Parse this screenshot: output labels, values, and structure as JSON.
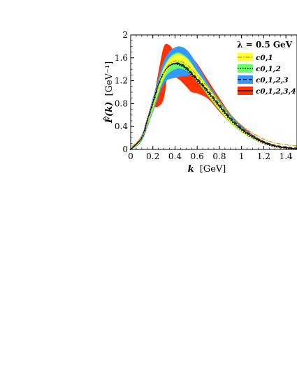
{
  "chart_data": {
    "type": "area",
    "xlabel_var": "k",
    "xlabel_unit": "[GeV]",
    "ylabel_var": "F̂(k)",
    "ylabel_unit": "[GeV⁻¹]",
    "xlim": [
      0,
      1.5
    ],
    "ylim": [
      0,
      2
    ],
    "x_ticks": [
      "0",
      "0.2",
      "0.4",
      "0.6",
      "0.8",
      "1",
      "1.2",
      "1.4"
    ],
    "y_ticks": [
      "0",
      "0.4",
      "0.8",
      "1.2",
      "1.6",
      "2"
    ],
    "legend": {
      "title": "λ = 0.5 GeV",
      "placement": "top-right"
    },
    "series": [
      {
        "name": "c0,1",
        "color": "#ffff33",
        "line_color": "#c8a200",
        "line_style": "dash-dot",
        "x": [
          0,
          0.1,
          0.2,
          0.3,
          0.4,
          0.5,
          0.6,
          0.7,
          0.8,
          0.9,
          1.0,
          1.1,
          1.2,
          1.3,
          1.4,
          1.5
        ],
        "upper": [
          0,
          0.22,
          0.82,
          1.42,
          1.65,
          1.6,
          1.35,
          1.08,
          0.8,
          0.55,
          0.36,
          0.22,
          0.12,
          0.06,
          0.03,
          0.01
        ],
        "lower": [
          0,
          0.18,
          0.72,
          1.28,
          1.52,
          1.46,
          1.22,
          0.96,
          0.7,
          0.48,
          0.31,
          0.19,
          0.1,
          0.05,
          0.02,
          0.01
        ]
      },
      {
        "name": "c0,1,2",
        "color": "#66ff66",
        "line_color": "#000000",
        "line_style": "dotted",
        "x": [
          0,
          0.1,
          0.2,
          0.3,
          0.4,
          0.5,
          0.6,
          0.7,
          0.8,
          0.9,
          1.0,
          1.1,
          1.2,
          1.3,
          1.4,
          1.5
        ],
        "upper": [
          0,
          0.23,
          0.85,
          1.45,
          1.68,
          1.62,
          1.36,
          1.1,
          0.82,
          0.57,
          0.37,
          0.23,
          0.13,
          0.07,
          0.03,
          0.01
        ],
        "lower": [
          0,
          0.17,
          0.68,
          1.22,
          1.4,
          1.38,
          1.18,
          0.93,
          0.68,
          0.46,
          0.3,
          0.18,
          0.1,
          0.05,
          0.02,
          0.01
        ]
      },
      {
        "name": "c0,1,2,3",
        "color": "#3399ff",
        "line_color": "#000000",
        "line_style": "dashed",
        "x": [
          0,
          0.1,
          0.2,
          0.3,
          0.4,
          0.5,
          0.6,
          0.7,
          0.8,
          0.9,
          1.0,
          1.1,
          1.2,
          1.3,
          1.4,
          1.5
        ],
        "upper": [
          0,
          0.25,
          0.9,
          1.55,
          1.78,
          1.75,
          1.48,
          1.15,
          0.86,
          0.6,
          0.4,
          0.25,
          0.14,
          0.07,
          0.03,
          0.01
        ],
        "lower": [
          0,
          0.15,
          0.65,
          1.15,
          1.25,
          1.28,
          1.3,
          1.0,
          0.72,
          0.5,
          0.32,
          0.2,
          0.11,
          0.05,
          0.02,
          0.01
        ]
      },
      {
        "name": "c0,1,2,3,4",
        "color": "#ff3300",
        "line_color": "#000000",
        "line_style": "solid",
        "x": [
          0,
          0.1,
          0.15,
          0.2,
          0.25,
          0.3,
          0.35,
          0.4,
          0.45,
          0.5,
          0.55,
          0.6,
          0.7,
          0.8,
          0.9,
          1.0,
          1.1,
          1.2,
          1.3,
          1.4,
          1.5
        ],
        "upper": [
          0,
          0.25,
          0.55,
          0.82,
          1.35,
          1.8,
          1.82,
          1.7,
          1.72,
          1.68,
          1.6,
          1.5,
          1.2,
          0.9,
          0.62,
          0.42,
          0.26,
          0.15,
          0.08,
          0.04,
          0.01
        ],
        "lower": [
          0,
          0.2,
          0.5,
          0.72,
          0.75,
          0.9,
          1.48,
          1.28,
          1.2,
          1.1,
          1.0,
          0.98,
          0.88,
          0.66,
          0.46,
          0.3,
          0.19,
          0.1,
          0.05,
          0.02,
          0.01
        ],
        "central": [
          0,
          0.2,
          0.5,
          0.8,
          1.12,
          1.35,
          1.46,
          1.5,
          1.48,
          1.42,
          1.32,
          1.22,
          1.0,
          0.76,
          0.53,
          0.35,
          0.22,
          0.12,
          0.06,
          0.03,
          0.01
        ]
      }
    ],
    "grid": false
  }
}
